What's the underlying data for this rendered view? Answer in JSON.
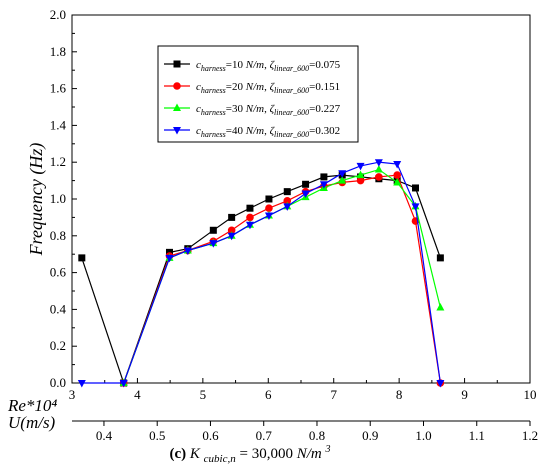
{
  "chart_data": {
    "type": "line",
    "title": "",
    "ylabel": "Frequency (Hz)",
    "ylim": [
      0,
      2.0
    ],
    "yticks": [
      "0.0",
      "0.2",
      "0.4",
      "0.6",
      "0.8",
      "1.0",
      "1.2",
      "1.4",
      "1.6",
      "1.8",
      "2.0"
    ],
    "x_primary": {
      "label": "Re*10⁴",
      "range": [
        3,
        10
      ],
      "ticks": [
        "3",
        "4",
        "5",
        "6",
        "7",
        "8",
        "9",
        "10"
      ]
    },
    "x_secondary": {
      "label": "U(m/s)",
      "range": [
        0.34,
        1.2
      ],
      "ticks": [
        "0.4",
        "0.5",
        "0.6",
        "0.7",
        "0.8",
        "0.9",
        "1.0",
        "1.1",
        "1.2"
      ]
    },
    "caption": {
      "prefix": "(c)",
      "text_main": "K",
      "text_sub": "cubic,n",
      "text_rest": " = 30,000 ",
      "units": "N/m",
      "units_sup": "3"
    },
    "series": [
      {
        "name": "c_harness=10 N/m, ζ_linear_600=0.075",
        "legend": {
          "c_val": "=10 ",
          "units": "N/m",
          "zeta_val": "=0.075"
        },
        "color": "#000000",
        "marker": "square",
        "x": [
          3.15,
          3.79,
          4.49,
          4.77,
          5.16,
          5.44,
          5.72,
          6.01,
          6.29,
          6.57,
          6.85,
          7.13,
          7.41,
          7.69,
          7.97,
          8.25,
          8.63
        ],
        "y": [
          0.68,
          0.0,
          0.71,
          0.73,
          0.83,
          0.9,
          0.95,
          1.0,
          1.04,
          1.08,
          1.12,
          1.13,
          1.12,
          1.11,
          1.1,
          1.06,
          0.68
        ]
      },
      {
        "name": "c_harness=20 N/m, ζ_linear_600=0.151",
        "legend": {
          "c_val": "=20 ",
          "units": "N/m",
          "zeta_val": "=0.151"
        },
        "color": "#ff0000",
        "marker": "circle",
        "x": [
          3.79,
          4.49,
          4.77,
          5.16,
          5.44,
          5.72,
          6.01,
          6.29,
          6.57,
          6.85,
          7.13,
          7.41,
          7.69,
          7.97,
          8.25,
          8.63
        ],
        "y": [
          0.0,
          0.69,
          0.72,
          0.77,
          0.83,
          0.9,
          0.95,
          0.99,
          1.04,
          1.07,
          1.09,
          1.1,
          1.12,
          1.13,
          0.88,
          0.0
        ]
      },
      {
        "name": "c_harness=30 N/m, ζ_linear_600=0.227",
        "legend": {
          "c_val": "=30 ",
          "units": "N/m",
          "zeta_val": "=0.227"
        },
        "color": "#00ff00",
        "marker": "triangle-up",
        "x": [
          3.79,
          4.49,
          4.77,
          5.16,
          5.44,
          5.72,
          6.01,
          6.29,
          6.57,
          6.85,
          7.13,
          7.41,
          7.69,
          7.97,
          8.25,
          8.63
        ],
        "y": [
          0.0,
          0.68,
          0.72,
          0.76,
          0.8,
          0.86,
          0.91,
          0.96,
          1.01,
          1.06,
          1.1,
          1.13,
          1.16,
          1.09,
          0.96,
          0.41
        ]
      },
      {
        "name": "c_harness=40 N/m, ζ_linear_600=0.302",
        "legend": {
          "c_val": "=40 ",
          "units": "N/m",
          "zeta_val": "=0.302"
        },
        "color": "#0000ff",
        "marker": "triangle-down",
        "x": [
          3.15,
          3.79,
          4.49,
          4.77,
          5.16,
          5.44,
          5.72,
          6.01,
          6.29,
          6.57,
          6.85,
          7.13,
          7.41,
          7.69,
          7.97,
          8.25,
          8.63
        ],
        "y": [
          0.0,
          0.0,
          0.68,
          0.72,
          0.76,
          0.8,
          0.86,
          0.91,
          0.96,
          1.03,
          1.08,
          1.14,
          1.18,
          1.2,
          1.19,
          0.96,
          0.0
        ]
      }
    ],
    "legend_labels": {
      "c_prefix": "c",
      "c_sub": "harness",
      "zeta_prefix": "ζ",
      "zeta_sub": "linear_600"
    },
    "legend_position": "top-center",
    "grid": false
  }
}
